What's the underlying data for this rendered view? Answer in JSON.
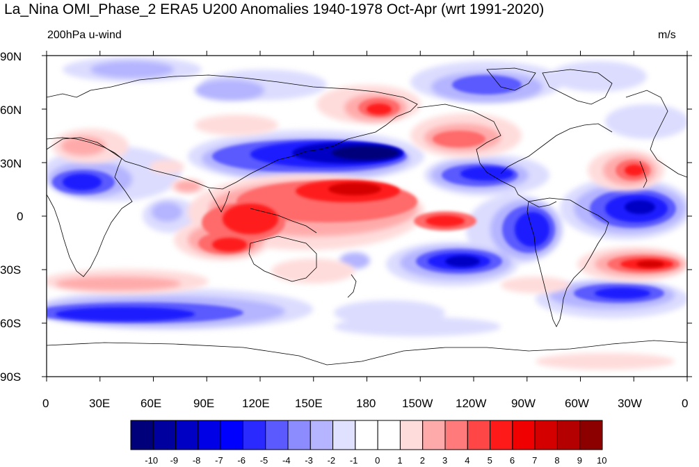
{
  "title": "La_Nina OMI_Phase_2 ERA5 U200 Anomalies 1940-1978 Oct-Apr (wrt 1991-2020)",
  "left_subtitle": "200hPa u-wind",
  "right_subtitle": "m/s",
  "lat_ticks": [
    "90N",
    "60N",
    "30N",
    "0",
    "30S",
    "60S",
    "90S"
  ],
  "lon_ticks": [
    "0",
    "30E",
    "60E",
    "90E",
    "120E",
    "150E",
    "180",
    "150W",
    "120W",
    "90W",
    "60W",
    "30W",
    "0"
  ],
  "colorbar": {
    "labels": [
      "-10",
      "-9",
      "-8",
      "-7",
      "-6",
      "-5",
      "-4",
      "-3",
      "-2",
      "-1",
      "0",
      "1",
      "2",
      "3",
      "4",
      "5",
      "6",
      "7",
      "8",
      "9",
      "10"
    ],
    "colors": [
      "#00007a",
      "#00009e",
      "#0000c4",
      "#0000e6",
      "#0000ff",
      "#2a2aff",
      "#5a5aff",
      "#8c8cff",
      "#b4b4ff",
      "#e0e0ff",
      "#ffffff",
      "#ffffff",
      "#ffdcdc",
      "#ffaaaa",
      "#ff7a7a",
      "#ff4646",
      "#ff1a1a",
      "#f00000",
      "#d40000",
      "#b40000",
      "#8c0000"
    ]
  }
}
